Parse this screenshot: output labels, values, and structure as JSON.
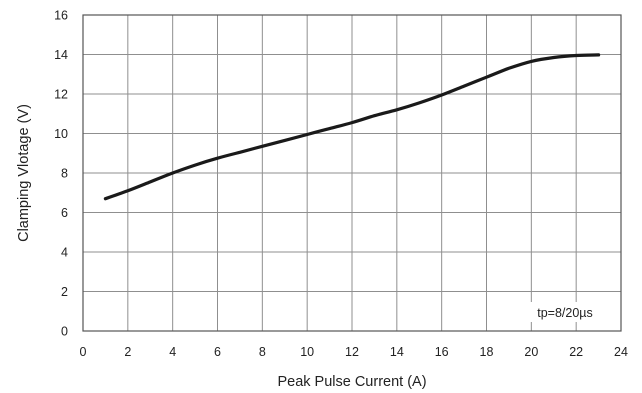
{
  "chart_data": {
    "type": "line",
    "title": "",
    "xlabel": "Peak Pulse Current (A)",
    "ylabel": "Clamping Vlotage (V)",
    "xlim": [
      0,
      24
    ],
    "ylim": [
      0,
      16
    ],
    "xticks": [
      0,
      2,
      4,
      6,
      8,
      10,
      12,
      14,
      16,
      18,
      20,
      22,
      24
    ],
    "yticks": [
      0,
      2,
      4,
      6,
      8,
      10,
      12,
      14,
      16
    ],
    "grid": true,
    "annotation": "tp=8/20µs",
    "series": [
      {
        "color": "#1a1a1a",
        "x": [
          1,
          2,
          3,
          4,
          5,
          6,
          7,
          8,
          9,
          10,
          11,
          12,
          13,
          14,
          15,
          16,
          17,
          18,
          19,
          20,
          21,
          22,
          23
        ],
        "y": [
          6.7,
          7.1,
          7.55,
          8.0,
          8.4,
          8.75,
          9.05,
          9.35,
          9.65,
          9.95,
          10.25,
          10.55,
          10.9,
          11.2,
          11.55,
          11.95,
          12.4,
          12.85,
          13.3,
          13.65,
          13.85,
          13.95,
          13.98
        ]
      }
    ]
  }
}
